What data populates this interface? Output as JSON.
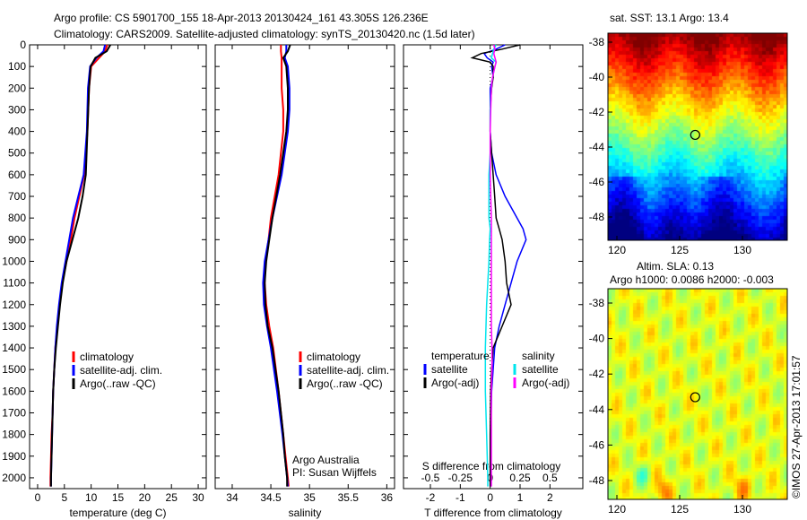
{
  "header": {
    "line1": "Argo profile: CS 5901700_155 18-Apr-2013 20130424_161 43.305S 126.236E",
    "line2": "Climatology: CARS2009. Satellite-adjusted climatology: synTS_20130420.nc (1.5d later)"
  },
  "colors": {
    "climatology": "#ff0000",
    "satellite": "#0000ff",
    "argo": "#000000",
    "sal_satellite": "#00e5ee",
    "sal_argo": "#ff00ff"
  },
  "chart_data": [
    {
      "type": "line",
      "id": "temperature",
      "xlabel": "temperature (deg C)",
      "xlim": [
        -1.5,
        31.5
      ],
      "xticks": [
        0,
        5,
        10,
        15,
        20,
        25,
        30
      ],
      "ylim": [
        0,
        2050
      ],
      "yticks": [
        0,
        100,
        200,
        300,
        400,
        500,
        600,
        700,
        800,
        900,
        1000,
        1100,
        1200,
        1300,
        1400,
        1500,
        1600,
        1700,
        1800,
        1900,
        2000
      ],
      "legend": [
        "climatology",
        "satellite-adj. clim.",
        "Argo(..raw -QC)"
      ],
      "depth": [
        0,
        30,
        60,
        100,
        200,
        400,
        600,
        700,
        800,
        900,
        1000,
        1100,
        1200,
        1300,
        1400,
        1500,
        1600,
        1700,
        1800,
        1900,
        2000,
        2040
      ],
      "series": [
        {
          "name": "climatology",
          "color": "climatology",
          "values": [
            13,
            12.6,
            11.5,
            10,
            9.6,
            9.3,
            8.7,
            7.8,
            6.9,
            6.2,
            5.4,
            4.6,
            4.1,
            3.7,
            3.3,
            3.1,
            2.9,
            2.8,
            2.6,
            2.5,
            2.4,
            2.4
          ]
        },
        {
          "name": "satellite-adj. clim.",
          "color": "satellite",
          "values": [
            12.6,
            12.3,
            11,
            9.8,
            9.4,
            9.2,
            8.6,
            7.6,
            6.6,
            5.9,
            5.2,
            4.5,
            4.0,
            3.6,
            3.3,
            3.1,
            2.9,
            2.8,
            2.7,
            2.6,
            2.5,
            2.5
          ]
        },
        {
          "name": "Argo(..raw -QC)",
          "color": "argo",
          "values": [
            13.6,
            12.9,
            10.8,
            9.9,
            9.6,
            9.3,
            9.0,
            8.4,
            7.6,
            6.5,
            5.4,
            4.7,
            4.2,
            3.8,
            3.4,
            3.1,
            2.9,
            2.8,
            2.7,
            2.6,
            2.5,
            2.5
          ]
        }
      ]
    },
    {
      "type": "line",
      "id": "salinity",
      "xlabel": "salinity",
      "xlim": [
        33.78,
        36.1
      ],
      "xticks": [
        34,
        34.5,
        35,
        35.5,
        36
      ],
      "ylim": [
        0,
        2050
      ],
      "legend": [
        "climatology",
        "satellite-adj. clim.",
        "Argo(..raw -QC)"
      ],
      "annotations": [
        "Argo Australia",
        "PI: Susan Wijffels"
      ],
      "depth": [
        0,
        30,
        60,
        100,
        200,
        300,
        400,
        600,
        800,
        900,
        1000,
        1100,
        1200,
        1300,
        1400,
        1600,
        1800,
        1900,
        2000,
        2040
      ],
      "series": [
        {
          "name": "climatology",
          "color": "climatology",
          "values": [
            34.63,
            34.63,
            34.64,
            34.64,
            34.64,
            34.66,
            34.66,
            34.6,
            34.5,
            34.47,
            34.43,
            34.42,
            34.44,
            34.48,
            34.53,
            34.6,
            34.66,
            34.69,
            34.72,
            34.73
          ]
        },
        {
          "name": "satellite-adj. clim.",
          "color": "satellite",
          "values": [
            34.7,
            34.7,
            34.68,
            34.72,
            34.74,
            34.74,
            34.72,
            34.64,
            34.52,
            34.47,
            34.42,
            34.4,
            34.41,
            34.45,
            34.5,
            34.58,
            34.65,
            34.68,
            34.71,
            34.72
          ]
        },
        {
          "name": "Argo(..raw -QC)",
          "color": "argo",
          "values": [
            34.75,
            34.72,
            34.66,
            34.7,
            34.72,
            34.72,
            34.7,
            34.62,
            34.52,
            34.48,
            34.44,
            34.42,
            34.43,
            34.46,
            34.52,
            34.6,
            34.66,
            34.68,
            34.71,
            34.71
          ]
        }
      ]
    },
    {
      "type": "line",
      "id": "difference",
      "xlabel": "T difference from climatology",
      "xlabel2": "S difference from climatology",
      "xlim": [
        -2.9,
        3.1
      ],
      "xticks": [
        -2,
        -1,
        0,
        1,
        2
      ],
      "s_xticks": [
        -0.5,
        -0.25,
        0,
        0.25,
        0.5
      ],
      "s_scale": 4,
      "legend_title_t": "temperature",
      "legend_title_s": "salinity",
      "legend_t": [
        "satellite",
        "Argo(-adj)"
      ],
      "legend_s": [
        "satellite",
        "Argo(-adj)"
      ],
      "depth": [
        0,
        20,
        40,
        60,
        80,
        100,
        150,
        200,
        300,
        400,
        500,
        600,
        700,
        800,
        850,
        900,
        1000,
        1100,
        1200,
        1300,
        1400,
        1500,
        1600,
        1800,
        2000,
        2040
      ],
      "series": [
        {
          "name": "T satellite",
          "color": "satellite",
          "unit": "T",
          "values": [
            0.5,
            0.2,
            -0.2,
            -0.1,
            0.1,
            0.05,
            0.1,
            0,
            0,
            0,
            0.05,
            0.2,
            0.5,
            0.9,
            1.1,
            1.2,
            0.9,
            0.7,
            0.5,
            0.3,
            0.15,
            0.1,
            0.05,
            0.02,
            0,
            0
          ]
        },
        {
          "name": "T Argo(-adj)",
          "color": "argo",
          "unit": "T",
          "values": [
            1.0,
            0.4,
            -0.3,
            -0.6,
            0.0,
            0.1,
            0.1,
            0.05,
            0,
            0,
            0.05,
            0.1,
            0.15,
            0.2,
            0.3,
            0.4,
            0.5,
            0.55,
            0.7,
            0.4,
            0.1,
            0.05,
            0.02,
            0,
            0,
            0
          ]
        },
        {
          "name": "S satellite",
          "color": "sal_satellite",
          "unit": "S",
          "values": [
            0.05,
            0.03,
            0.02,
            0.01,
            0.05,
            0.04,
            0.02,
            0.01,
            0,
            0,
            0,
            -0.01,
            -0.01,
            -0.01,
            0,
            -0.005,
            -0.01,
            -0.02,
            -0.03,
            -0.035,
            -0.04,
            -0.04,
            -0.04,
            -0.03,
            -0.02,
            -0.02
          ]
        },
        {
          "name": "S Argo(-adj)",
          "color": "sal_argo",
          "unit": "S",
          "values": [
            0.03,
            0.04,
            0.03,
            0.04,
            0.05,
            0.04,
            0.02,
            0.01,
            0.005,
            0,
            0,
            0,
            0.005,
            0.01,
            0.01,
            0.01,
            0.01,
            0.01,
            0.01,
            0.01,
            0.015,
            0.015,
            0.01,
            0.01,
            0.01,
            0.01
          ]
        }
      ]
    }
  ],
  "maps": {
    "sst": {
      "title": "sat. SST: 13.1 Argo: 13.4",
      "lat_ticks": [
        -38,
        -40,
        -42,
        -44,
        -46,
        -48
      ],
      "lon_ticks": [
        120,
        125,
        130
      ],
      "marker": {
        "lat": -43.305,
        "lon": 126.236
      }
    },
    "sla": {
      "title1": "Altim. SLA: 0.13",
      "title2": "Argo h1000: 0.0086 h2000: -0.003",
      "lat_ticks": [
        -38,
        -40,
        -42,
        -44,
        -46,
        -48
      ],
      "lon_ticks": [
        120,
        125,
        130
      ],
      "marker": {
        "lat": -43.305,
        "lon": 126.236
      }
    }
  },
  "footer": {
    "stamp": "©IMOS 27-Apr-2013 17:01:57"
  }
}
